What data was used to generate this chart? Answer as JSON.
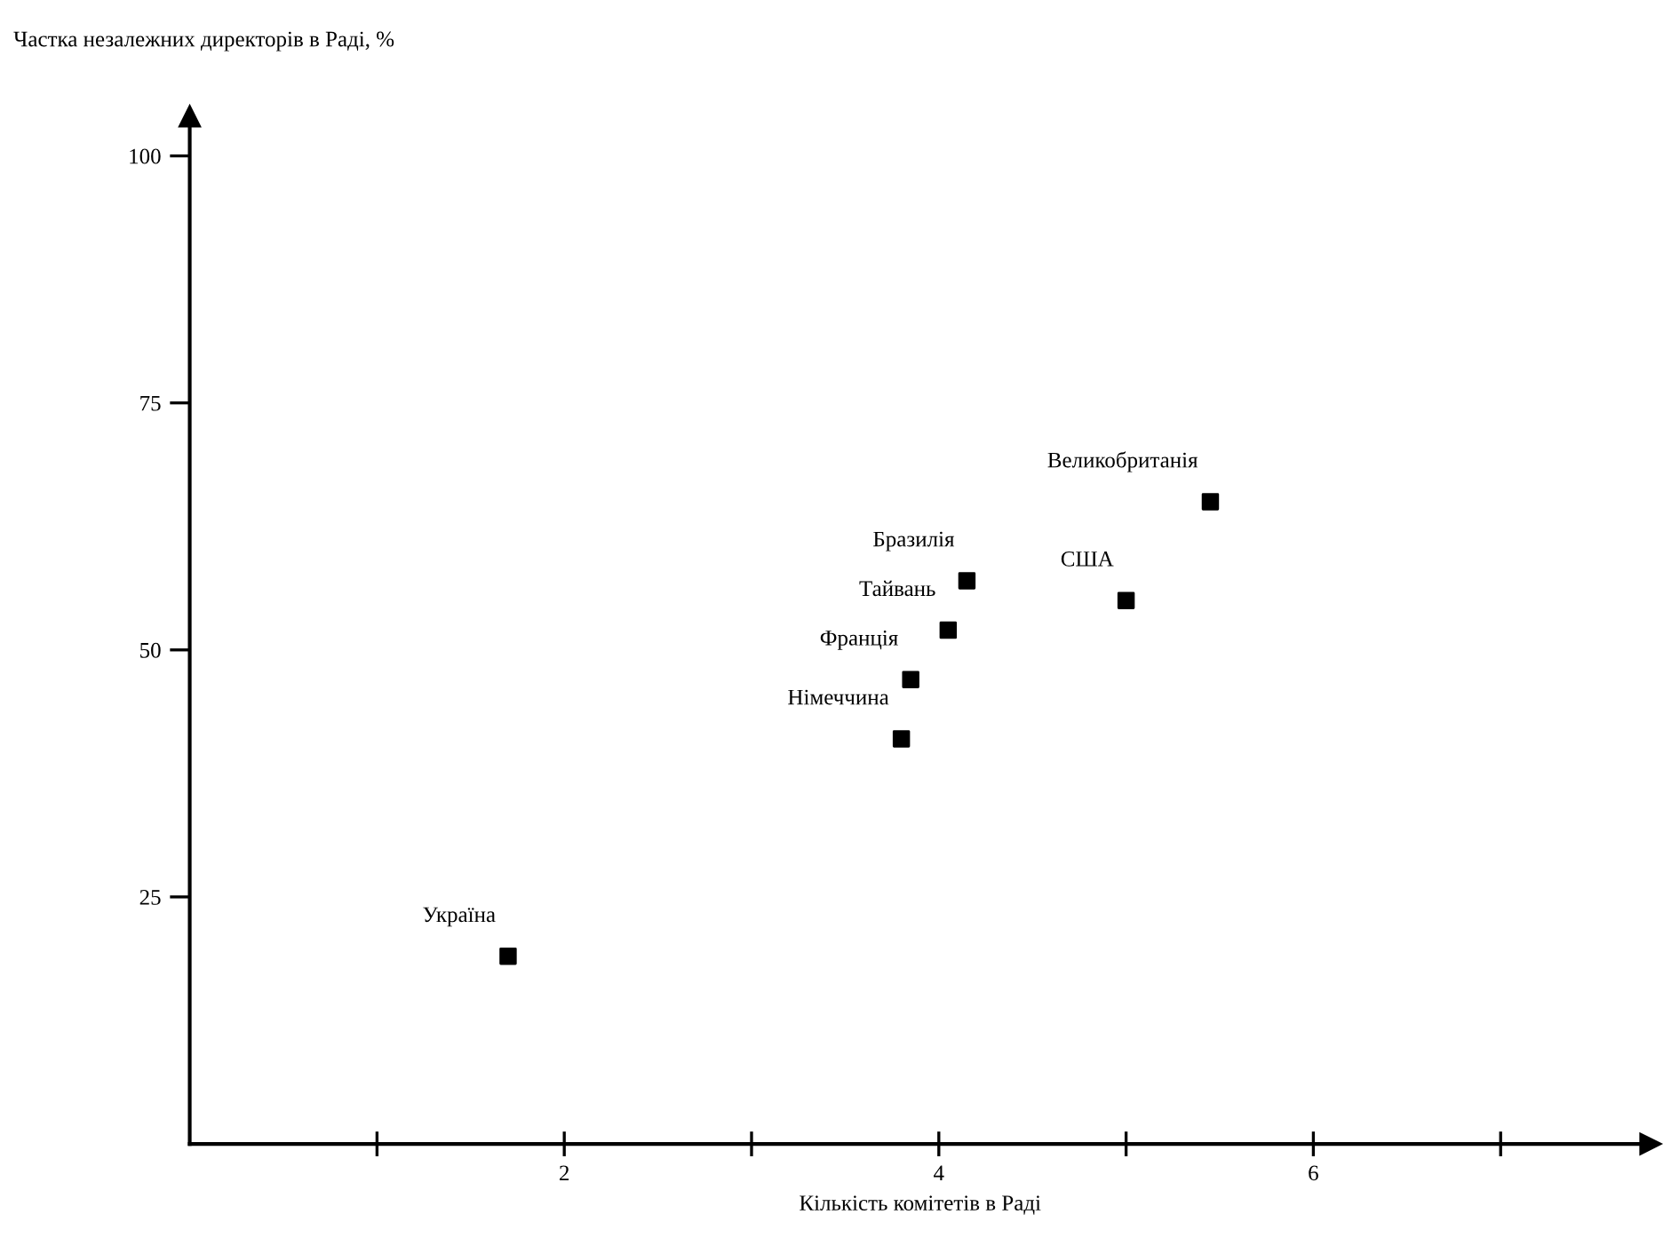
{
  "chart_data": {
    "type": "scatter",
    "ylabel": "Частка незалежних директорів в Раді, %",
    "xlabel": "Кількість комітетів в Раді",
    "x": [
      1.7,
      3.8,
      3.85,
      4.05,
      4.15,
      5.0,
      5.45
    ],
    "values": [
      19,
      41,
      47,
      52,
      57,
      55,
      65
    ],
    "color": "#000000",
    "marker": "square",
    "annotations": [
      {
        "text": "Україна",
        "x": 1.7,
        "y": 19
      },
      {
        "text": "Німеччина",
        "x": 3.8,
        "y": 41
      },
      {
        "text": "Франція",
        "x": 3.85,
        "y": 47
      },
      {
        "text": "Тайвань",
        "x": 4.05,
        "y": 52
      },
      {
        "text": "Бразилія",
        "x": 4.15,
        "y": 57
      },
      {
        "text": "США",
        "x": 5.0,
        "y": 55
      },
      {
        "text": "Великобританія",
        "x": 5.45,
        "y": 65
      }
    ],
    "xlim": [
      0,
      7.8
    ],
    "ylim": [
      0,
      104
    ],
    "xticks": [
      {
        "value": 1,
        "label": null
      },
      2,
      {
        "value": 3,
        "label": null
      },
      4,
      {
        "value": 5,
        "label": null
      },
      6,
      {
        "value": 7,
        "label": null
      }
    ],
    "yticks": [
      25,
      50,
      75,
      100
    ],
    "grid": false,
    "legend": false
  }
}
